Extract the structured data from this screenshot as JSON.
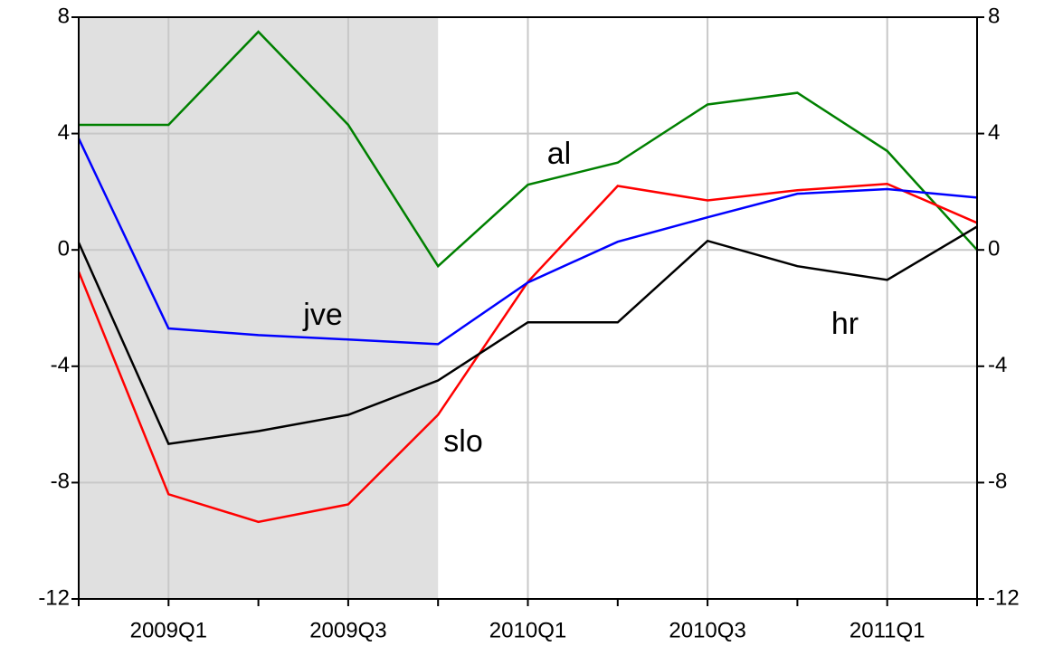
{
  "chart_data": {
    "type": "line",
    "categories": [
      null,
      "2009Q1",
      null,
      "2009Q3",
      null,
      "2010Q1",
      null,
      "2010Q3",
      null,
      "2011Q1",
      null
    ],
    "series": [
      {
        "name": "al",
        "color": "#008000",
        "values": [
          4.3,
          4.3,
          7.5,
          4.3,
          -0.56,
          2.24,
          3.0,
          5.0,
          5.4,
          3.4,
          0.0
        ]
      },
      {
        "name": "slo",
        "color": "#ff0000",
        "values": [
          -0.75,
          -8.4,
          -9.35,
          -8.75,
          -5.67,
          -1.1,
          2.2,
          1.7,
          2.05,
          2.27,
          0.93
        ]
      },
      {
        "name": "jve",
        "color": "#0000ff",
        "values": [
          3.83,
          -2.7,
          -2.93,
          -3.08,
          -3.24,
          -1.12,
          0.28,
          1.12,
          1.93,
          2.09,
          1.8
        ]
      },
      {
        "name": "hr",
        "color": "#000000",
        "values": [
          0.25,
          -6.67,
          -6.23,
          -5.67,
          -4.49,
          -2.49,
          -2.49,
          0.31,
          -0.56,
          -1.03,
          0.8
        ]
      }
    ],
    "ylim": [
      -12,
      8
    ],
    "yticks": [
      -12,
      -8,
      -4,
      0,
      4,
      8
    ],
    "shaded_range": {
      "from": 0,
      "to": 4,
      "color": "#e0e0e0"
    },
    "grid": true
  }
}
